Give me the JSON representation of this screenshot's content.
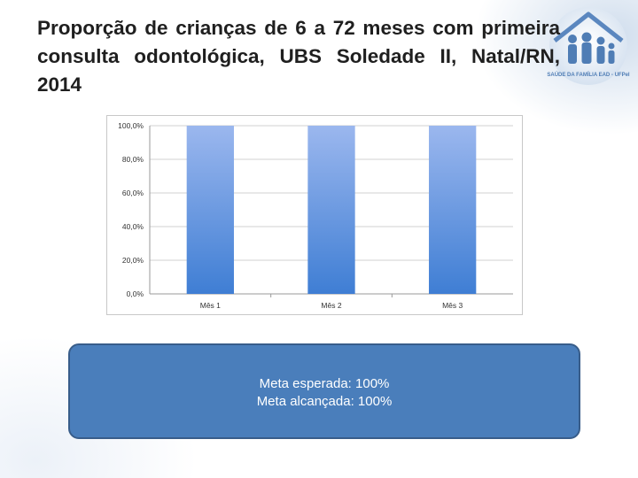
{
  "slide": {
    "title": "Proporção de crianças de 6 a 72 meses com primeira consulta odontológica, UBS Soledade II, Natal/RN, 2014",
    "logo_text": "SAÚDE DA FAMÍLIA EAD - UFPel"
  },
  "colors": {
    "bar_top": "#9bb7ee",
    "bar_bottom": "#3f7ed4",
    "callout_fill": "#4a7ebb",
    "callout_border": "#385d8a",
    "grid": "#d0d0d0"
  },
  "chart_data": {
    "type": "bar",
    "title": "",
    "xlabel": "",
    "ylabel": "",
    "categories": [
      "Mês 1",
      "Mês 2",
      "Mês 3"
    ],
    "values": [
      100.0,
      100.0,
      100.0
    ],
    "ylim": [
      0,
      100
    ],
    "yticks": [
      0,
      20,
      40,
      60,
      80,
      100
    ],
    "ytick_labels": [
      "0,0%",
      "20,0%",
      "40,0%",
      "60,0%",
      "80,0%",
      "100,0%"
    ],
    "grid": true,
    "legend": "none"
  },
  "callout": {
    "line1": "Meta esperada: 100%",
    "line2": "Meta alcançada: 100%"
  }
}
